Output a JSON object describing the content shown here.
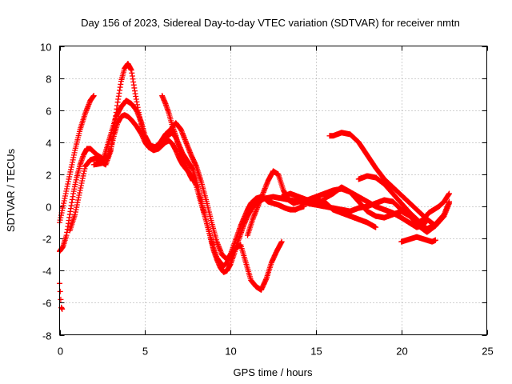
{
  "chart_data": {
    "type": "scatter",
    "title": "Day 156 of 2023, Sidereal Day-to-day VTEC variation (SDTVAR) for receiver nmtn",
    "xlabel": "GPS time / hours",
    "ylabel": "SDTVAR / TECUs",
    "xlim": [
      0,
      25
    ],
    "ylim": [
      -8,
      10
    ],
    "xticks": [
      0,
      5,
      10,
      15,
      20,
      25
    ],
    "yticks": [
      -8,
      -6,
      -4,
      -2,
      0,
      2,
      4,
      6,
      8,
      10
    ],
    "grid": true,
    "marker": "+",
    "color": "#ff0000",
    "series": [
      {
        "name": "track-1",
        "x": [
          0.0,
          0.3,
          0.6,
          0.9,
          1.2,
          1.5,
          1.8,
          2.0
        ],
        "y": [
          -1.0,
          0.5,
          2.0,
          3.5,
          4.8,
          5.8,
          6.6,
          6.9
        ]
      },
      {
        "name": "track-2",
        "x": [
          0.0,
          0.2,
          0.4,
          0.6,
          0.8,
          1.0,
          1.2,
          1.4,
          1.6,
          1.8,
          2.0,
          2.2,
          2.5,
          2.8,
          3.0,
          3.2,
          3.4,
          3.6,
          3.8,
          4.0,
          4.2,
          4.5,
          4.8,
          5.0,
          5.2,
          5.5,
          5.8,
          6.0,
          6.2,
          6.4,
          6.6,
          6.8,
          7.0,
          7.2,
          7.5,
          7.8,
          8.0,
          8.2,
          8.5,
          8.8,
          9.0,
          9.2,
          9.4,
          9.6,
          9.8,
          10.0,
          10.2,
          10.4,
          10.6,
          10.8,
          11.0,
          11.2,
          11.5,
          11.8,
          12.0,
          12.2,
          12.5,
          12.8,
          13.0,
          13.2,
          13.5,
          13.8,
          14.0,
          14.3
        ],
        "y": [
          -2.8,
          -2.5,
          -1.8,
          -0.5,
          0.8,
          1.8,
          2.6,
          3.2,
          3.6,
          3.6,
          3.4,
          3.2,
          3.0,
          3.0,
          3.6,
          4.5,
          5.2,
          5.6,
          5.7,
          5.6,
          5.4,
          5.0,
          4.5,
          4.0,
          3.7,
          3.5,
          3.6,
          3.8,
          4.0,
          4.1,
          3.9,
          3.5,
          3.0,
          2.6,
          2.2,
          1.8,
          1.3,
          0.5,
          -0.6,
          -1.8,
          -2.6,
          -3.2,
          -3.5,
          -3.7,
          -3.5,
          -3.0,
          -2.4,
          -1.8,
          -1.2,
          -0.7,
          -0.2,
          0.2,
          0.5,
          0.6,
          0.5,
          0.3,
          0.2,
          0.1,
          0.0,
          -0.1,
          -0.2,
          -0.2,
          -0.1,
          0.0
        ]
      },
      {
        "name": "track-3",
        "x": [
          0.6,
          0.9,
          1.2,
          1.5,
          1.8,
          2.1,
          2.4,
          2.7,
          3.0,
          3.2,
          3.4,
          3.6,
          3.8,
          4.0,
          4.2,
          4.4,
          4.6,
          4.8,
          5.0,
          5.3,
          5.6,
          6.0,
          6.3,
          6.6,
          6.8,
          7.0,
          7.2,
          7.5,
          7.8,
          8.0,
          8.2,
          8.5,
          8.8,
          9.0,
          9.2,
          9.4,
          9.6,
          9.8,
          10.0,
          10.2,
          10.4,
          10.6,
          10.8,
          11.0,
          11.2,
          11.5,
          11.8,
          12.0,
          12.5,
          13.0,
          13.5,
          14.0,
          14.5,
          15.0,
          15.5,
          16.0,
          16.5,
          17.0,
          17.5,
          18.0,
          18.5,
          19.0,
          19.5,
          20.0,
          20.3,
          20.6,
          20.9,
          21.2,
          21.5
        ],
        "y": [
          -1.5,
          -0.5,
          1.0,
          2.5,
          2.9,
          3.0,
          2.8,
          2.6,
          3.5,
          5.0,
          6.5,
          7.8,
          8.6,
          8.9,
          8.5,
          7.2,
          6.0,
          5.0,
          4.2,
          3.8,
          3.7,
          4.1,
          4.4,
          4.6,
          4.3,
          3.8,
          3.3,
          2.8,
          2.3,
          1.6,
          0.7,
          -0.6,
          -1.8,
          -2.7,
          -3.3,
          -3.8,
          -4.1,
          -4.0,
          -3.6,
          -3.0,
          -2.3,
          -1.7,
          -1.1,
          -0.6,
          -0.2,
          0.2,
          0.4,
          0.5,
          0.6,
          0.5,
          0.4,
          0.3,
          0.4,
          0.6,
          0.8,
          1.0,
          1.1,
          0.9,
          0.6,
          0.3,
          0.0,
          -0.2,
          -0.4,
          -0.7,
          -0.9,
          -1.1,
          -1.3,
          -1.2,
          -0.9
        ]
      },
      {
        "name": "track-4",
        "x": [
          2.0,
          2.5,
          3.0,
          3.3,
          3.6,
          3.9,
          4.2,
          4.5,
          4.8,
          5.0,
          5.3,
          5.6,
          5.9,
          6.2,
          6.5,
          6.8,
          7.1,
          7.4,
          7.7,
          8.0,
          8.3,
          8.6,
          8.9,
          9.2,
          9.5,
          9.8,
          10.0,
          10.3,
          10.6,
          10.9,
          11.2,
          11.5,
          11.8,
          12.1,
          12.4,
          12.7,
          13.0
        ],
        "y": [
          2.6,
          2.7,
          4.5,
          5.6,
          6.2,
          6.6,
          6.4,
          6.0,
          5.2,
          4.4,
          3.8,
          3.6,
          4.0,
          4.5,
          4.8,
          5.2,
          4.8,
          4.0,
          3.2,
          2.5,
          1.5,
          0.3,
          -1.0,
          -2.2,
          -3.0,
          -3.3,
          -3.0,
          -2.6,
          -2.4,
          -3.5,
          -4.6,
          -5.0,
          -5.2,
          -4.5,
          -3.5,
          -2.8,
          -2.2
        ]
      },
      {
        "name": "track-5",
        "x": [
          11.0,
          11.3,
          11.6,
          11.9,
          12.2,
          12.5,
          12.8,
          13.1,
          13.4,
          13.7,
          14.0,
          14.5,
          15.0,
          15.5,
          16.0,
          16.5,
          17.0,
          17.5,
          18.0,
          18.5,
          19.0,
          19.5,
          20.0,
          20.5,
          21.0,
          21.3,
          21.6,
          21.9,
          22.2,
          22.5,
          22.8
        ],
        "y": [
          -1.8,
          -0.8,
          0.0,
          0.8,
          1.6,
          2.2,
          2.0,
          1.0,
          0.4,
          0.2,
          0.3,
          0.2,
          0.1,
          0.0,
          -0.1,
          -0.2,
          -0.3,
          -0.1,
          0.0,
          0.2,
          0.4,
          0.3,
          -0.2,
          -0.6,
          -1.0,
          -0.8,
          -0.4,
          -0.2,
          0.0,
          0.3,
          0.8
        ]
      },
      {
        "name": "track-6",
        "x": [
          15.5,
          16.0,
          16.5,
          17.0,
          17.5,
          18.0,
          18.5,
          19.0,
          19.5,
          20.0,
          20.5,
          21.0,
          21.5,
          22.0,
          22.5,
          22.8
        ],
        "y": [
          0.5,
          0.8,
          1.2,
          0.9,
          0.3,
          -0.3,
          -0.6,
          -0.7,
          -0.5,
          -0.3,
          -0.6,
          -1.2,
          -1.6,
          -1.2,
          -0.6,
          0.2
        ]
      },
      {
        "name": "track-7",
        "x": [
          15.8,
          16.0,
          16.5,
          17.0,
          17.5,
          18.0,
          18.5,
          19.0,
          19.5,
          20.0,
          20.5,
          21.0,
          21.5,
          22.0
        ],
        "y": [
          4.4,
          4.4,
          4.6,
          4.5,
          4.0,
          3.2,
          2.4,
          1.7,
          1.2,
          0.7,
          0.2,
          -0.3,
          -0.8,
          -1.2
        ]
      },
      {
        "name": "track-8",
        "x": [
          17.5,
          18.0,
          18.5,
          19.0,
          19.5,
          20.0,
          20.5,
          21.0,
          21.5,
          22.0,
          22.5,
          22.8
        ],
        "y": [
          1.7,
          1.9,
          1.8,
          1.4,
          0.8,
          0.2,
          -0.4,
          -0.9,
          -1.4,
          -1.1,
          -0.5,
          0.3
        ]
      },
      {
        "name": "track-9",
        "x": [
          20.0,
          20.3,
          20.6,
          20.9,
          21.2,
          21.5,
          21.8,
          22.0
        ],
        "y": [
          -2.2,
          -2.1,
          -2.0,
          -1.9,
          -2.0,
          -2.1,
          -2.2,
          -2.1
        ]
      },
      {
        "name": "track-10",
        "x": [
          13.0,
          13.5,
          14.0,
          14.5,
          15.0,
          15.5,
          16.0,
          16.5,
          17.0,
          17.5,
          18.0,
          18.5
        ],
        "y": [
          0.6,
          0.8,
          0.6,
          0.4,
          0.4,
          0.3,
          -0.2,
          -0.4,
          -0.6,
          -0.8,
          -1.0,
          -1.3
        ]
      },
      {
        "name": "track-11",
        "x": [
          6.0,
          6.2,
          6.4,
          6.6,
          6.8,
          7.0,
          7.2,
          7.4,
          7.6,
          7.8
        ],
        "y": [
          6.9,
          6.4,
          5.8,
          5.0,
          4.4,
          3.6,
          3.0,
          2.5,
          2.0,
          1.6
        ]
      },
      {
        "name": "track-12",
        "x": [
          0.0,
          0.1,
          0.15
        ],
        "y": [
          -4.8,
          -6.3,
          -6.4
        ]
      }
    ]
  }
}
